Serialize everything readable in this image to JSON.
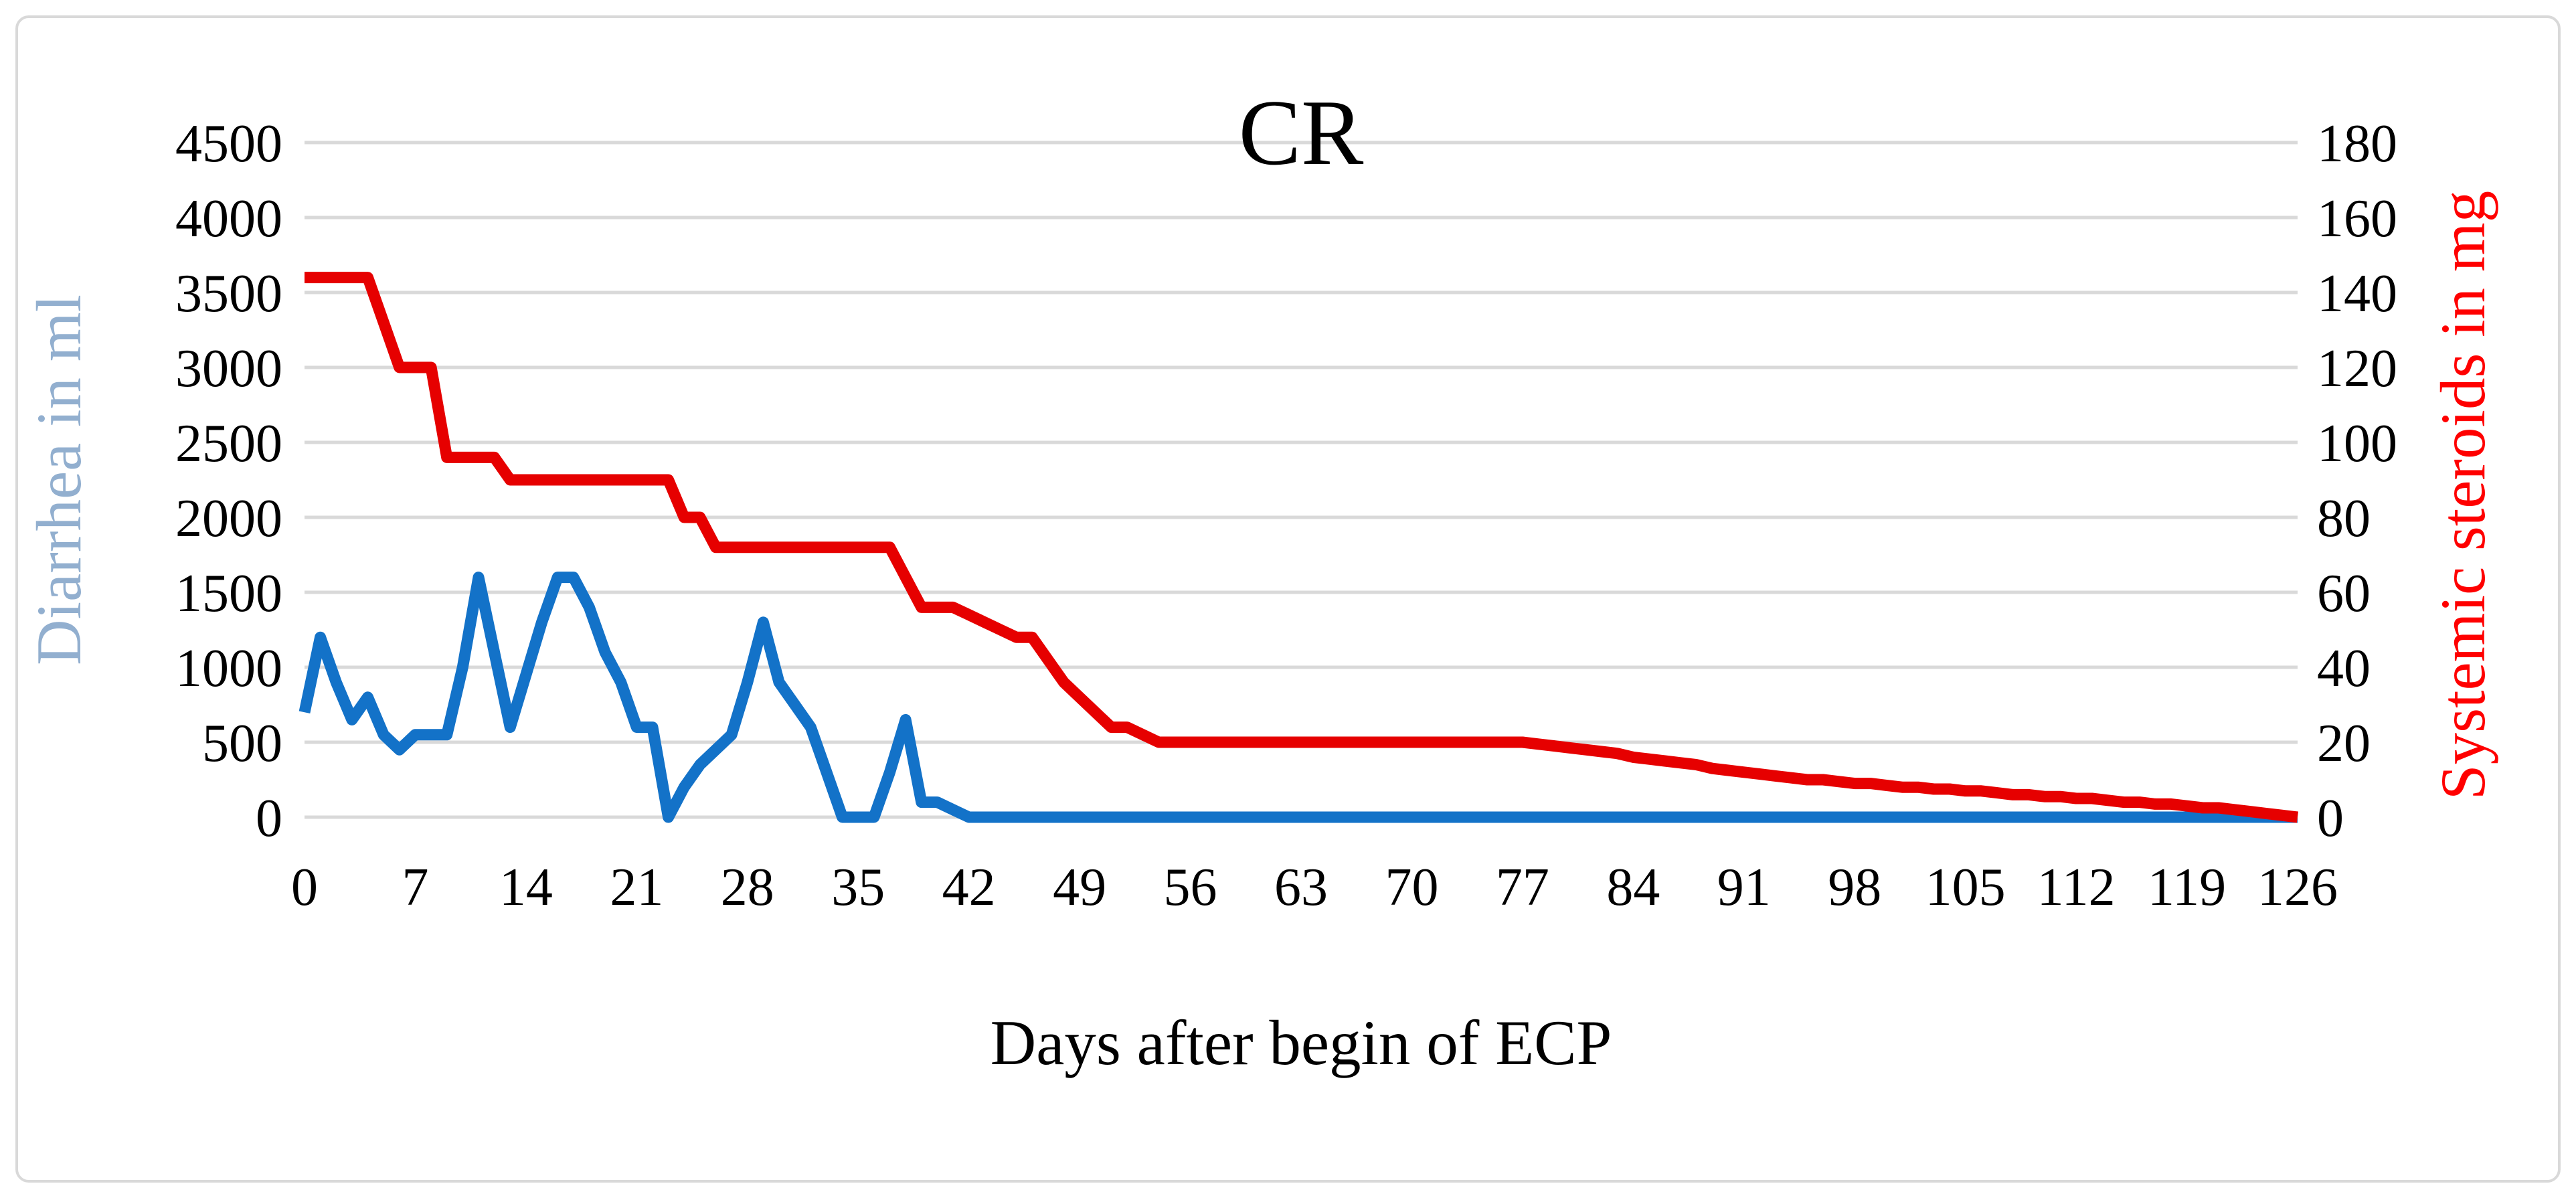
{
  "chart_data": {
    "type": "line",
    "title": "CR",
    "xlabel": "Days after begin of ECP",
    "ylabel_left": "Diarrhea in  ml",
    "ylabel_right": "Systemic steroids in mg",
    "x_ticks": [
      0,
      7,
      14,
      21,
      28,
      35,
      42,
      49,
      56,
      63,
      70,
      77,
      84,
      91,
      98,
      105,
      112,
      119,
      126
    ],
    "x_range": [
      0,
      126
    ],
    "left_axis": {
      "min": 0,
      "max": 4500,
      "step": 500,
      "tick_labels": [
        "0",
        "500",
        "1000",
        "1500",
        "2000",
        "2500",
        "3000",
        "3500",
        "4000",
        "4500"
      ]
    },
    "right_axis": {
      "min": 0,
      "max": 180,
      "step": 20,
      "tick_labels": [
        "0",
        "20",
        "40",
        "60",
        "80",
        "100",
        "120",
        "140",
        "160",
        "180"
      ]
    },
    "grid": true,
    "legend_position": "none",
    "colors": {
      "diarrhea_line": "#1372C8",
      "steroids_line": "#E60000",
      "left_axis_title": "#92AFCF",
      "right_axis_title": "#FF0000",
      "tick_text": "#000000",
      "gridline": "#D9D9D9",
      "figure_border": "#D9D9D9",
      "background": "#FFFFFF"
    },
    "series": [
      {
        "name": "Diarrhea in ml",
        "axis": "left",
        "unit": "ml",
        "color_key": "diarrhea_line",
        "x_start_day": 0,
        "values": [
          700,
          1200,
          900,
          650,
          800,
          550,
          450,
          550,
          550,
          550,
          1000,
          1600,
          1100,
          600,
          950,
          1300,
          1600,
          1600,
          1400,
          1100,
          900,
          600,
          600,
          0,
          200,
          350,
          450,
          550,
          900,
          1300,
          900,
          750,
          600,
          300,
          0,
          0,
          0,
          300,
          650,
          100,
          100,
          50,
          0,
          0,
          0,
          0,
          0,
          0,
          0,
          0,
          0,
          0,
          0,
          0,
          0,
          0,
          0,
          0,
          0,
          0,
          0,
          0,
          0,
          0,
          0,
          0,
          0,
          0,
          0,
          0,
          0,
          0,
          0,
          0,
          0,
          0,
          0,
          0,
          0,
          0,
          0,
          0,
          0,
          0,
          0,
          0,
          0,
          0,
          0,
          0,
          0,
          0,
          0,
          0,
          0,
          0,
          0,
          0,
          0,
          0,
          0,
          0,
          0,
          0,
          0,
          0,
          0,
          0,
          0,
          0,
          0,
          0,
          0,
          0,
          0,
          0,
          0,
          0,
          0,
          0,
          0,
          0,
          0,
          0,
          0,
          0,
          0
        ]
      },
      {
        "name": "Systemic steroids in mg",
        "axis": "right",
        "unit": "mg",
        "color_key": "steroids_line",
        "x_start_day": 0,
        "values": [
          144,
          144,
          144,
          144,
          144,
          132,
          120,
          120,
          120,
          96,
          96,
          96,
          96,
          90,
          90,
          90,
          90,
          90,
          90,
          90,
          90,
          90,
          90,
          90,
          80,
          80,
          72,
          72,
          72,
          72,
          72,
          72,
          72,
          72,
          72,
          72,
          72,
          72,
          64,
          56,
          56,
          56,
          54,
          52,
          50,
          48,
          48,
          42,
          36,
          32,
          28,
          24,
          24,
          22,
          20,
          20,
          20,
          20,
          20,
          20,
          20,
          20,
          20,
          20,
          20,
          20,
          20,
          20,
          20,
          20,
          20,
          20,
          20,
          20,
          20,
          20,
          20,
          20,
          19.5,
          19,
          18.5,
          18,
          17.5,
          17,
          16,
          15.5,
          15,
          14.5,
          14,
          13,
          12.5,
          12,
          11.5,
          11,
          10.5,
          10,
          10,
          9.5,
          9,
          9,
          8.5,
          8,
          8,
          7.5,
          7.5,
          7,
          7,
          6.5,
          6,
          6,
          5.5,
          5.5,
          5,
          5,
          4.5,
          4,
          4,
          3.5,
          3.5,
          3,
          2.5,
          2.5,
          2,
          1.5,
          1,
          0.5,
          0
        ]
      }
    ]
  }
}
